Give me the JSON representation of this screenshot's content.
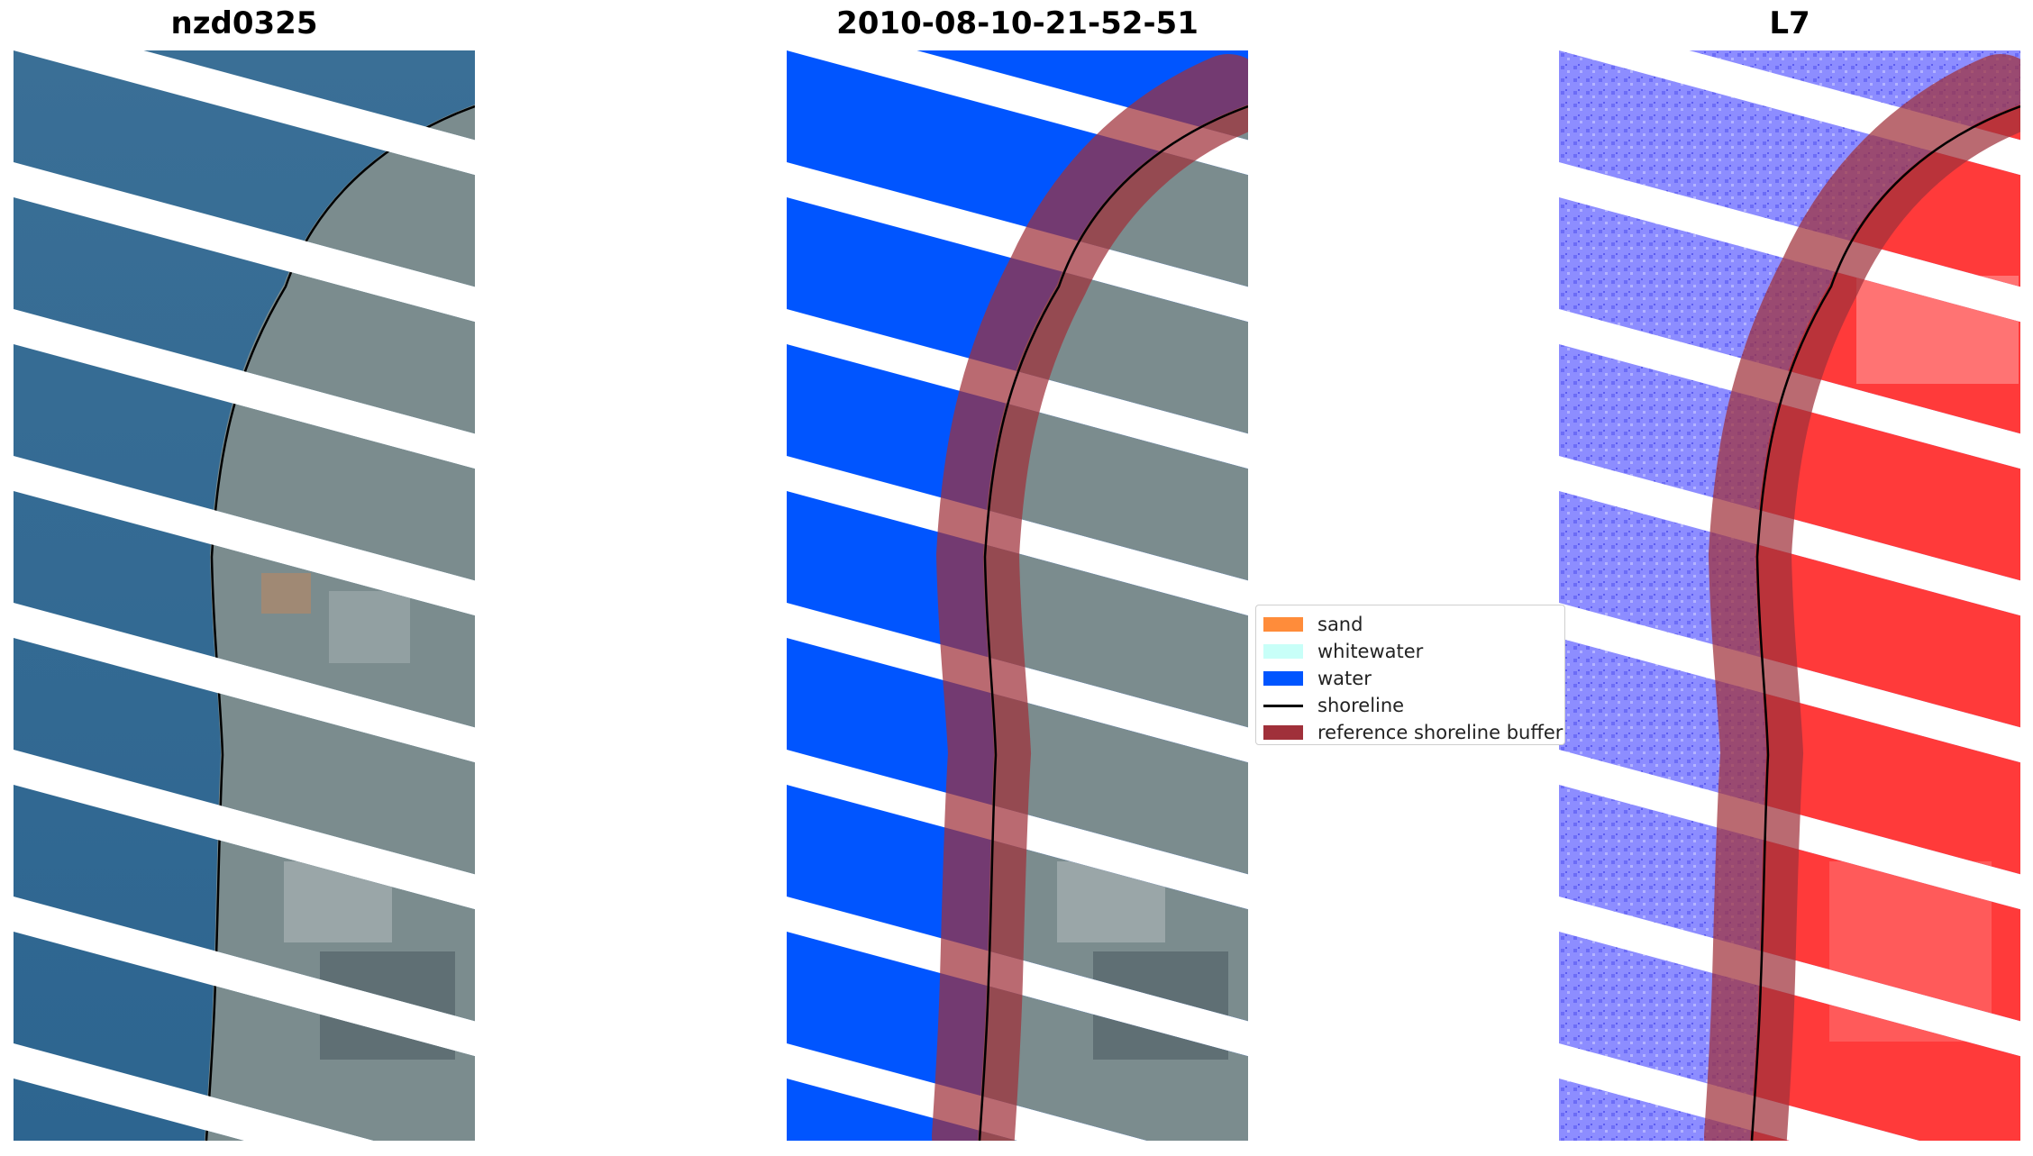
{
  "panels": {
    "left_title": "nzd0325",
    "middle_title": "2010-08-10-21-52-51",
    "right_title": "L7"
  },
  "legend": {
    "items": [
      {
        "label": "sand",
        "color": "#ff8c3a",
        "kind": "patch"
      },
      {
        "label": "whitewater",
        "color": "#c8fff8",
        "kind": "patch"
      },
      {
        "label": "water",
        "color": "#0055ff",
        "kind": "patch"
      },
      {
        "label": "shoreline",
        "color": "#000000",
        "kind": "line"
      },
      {
        "label": "reference shoreline buffer",
        "color": "#a0303a",
        "kind": "patch"
      }
    ]
  },
  "colors": {
    "ocean_rgb": "#2f6a93",
    "land_rgb": "#7a8d8f",
    "classified_water": "#0055ff",
    "buffer": "#a0303a",
    "index_water": "#7b7bff",
    "index_land": "#ff2a2a"
  }
}
